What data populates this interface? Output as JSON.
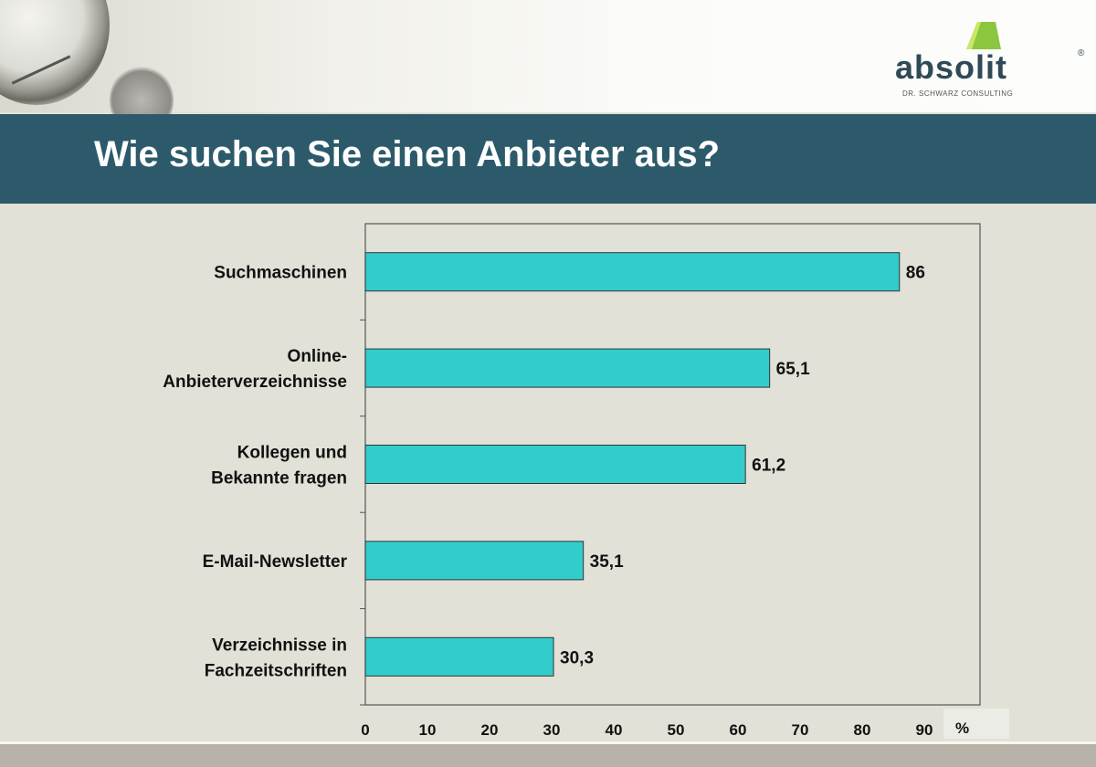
{
  "header": {
    "title": "Wie suchen Sie einen Anbieter aus?"
  },
  "logo": {
    "word": "absolit",
    "registered": "®",
    "subtitle": "DR. SCHWARZ CONSULTING",
    "colors": {
      "mark": "#8cc63f",
      "text": "#2f4a57"
    }
  },
  "chart_data": {
    "type": "bar",
    "orientation": "horizontal",
    "categories": [
      [
        "Suchmaschinen"
      ],
      [
        "Online-",
        "Anbieterverzeichnisse"
      ],
      [
        "Kollegen und",
        "Bekannte fragen"
      ],
      [
        "E-Mail-Newsletter"
      ],
      [
        "Verzeichnisse in",
        "Fachzeitschriften"
      ]
    ],
    "values": [
      86,
      65.1,
      61.2,
      35.1,
      30.3
    ],
    "value_labels": [
      "86",
      "65,1",
      "61,2",
      "35,1",
      "30,3"
    ],
    "x_ticks": [
      0,
      10,
      20,
      30,
      40,
      50,
      60,
      70,
      80,
      90
    ],
    "xlabel": "%",
    "xlim": [
      0,
      100
    ],
    "grid": false,
    "bar_color": "#33cccc"
  }
}
